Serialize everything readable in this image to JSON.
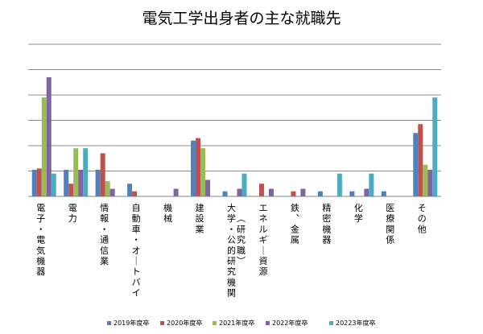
{
  "chart_data": {
    "type": "bar",
    "title": "電気工学出身者の主な就職先",
    "xlabel": "",
    "ylabel": "",
    "ylim": [
      0,
      6
    ],
    "grid": true,
    "legend_position": "bottom",
    "categories": [
      "電子・電気機器",
      "電力",
      "情報・通信業",
      "自動車・オートバイ",
      "機械",
      "建設業",
      "大学・公的研究機関（研究職）",
      "エネルギー資源",
      "鉄、金属",
      "精密機器",
      "化学",
      "医療関係",
      "その他"
    ],
    "series": [
      {
        "name": "2019年度卒",
        "color": "#4f81bd",
        "values": [
          1.05,
          1.05,
          1.05,
          0.5,
          0,
          2.2,
          0.2,
          0,
          0,
          0.2,
          0.2,
          0.2,
          2.5
        ]
      },
      {
        "name": "2020年度卒",
        "color": "#c0504d",
        "values": [
          1.1,
          0.5,
          1.7,
          0.2,
          0,
          2.3,
          0,
          0.5,
          0.2,
          0,
          0,
          0,
          2.85
        ]
      },
      {
        "name": "2021年度卒",
        "color": "#9bbb59",
        "values": [
          3.9,
          1.9,
          0.6,
          0,
          0,
          1.9,
          0,
          0,
          0,
          0,
          0,
          0,
          1.25
        ]
      },
      {
        "name": "2022年度卒",
        "color": "#8064a2",
        "values": [
          4.7,
          1.05,
          0.3,
          0,
          0.3,
          0.65,
          0.3,
          0.3,
          0.3,
          0,
          0.3,
          0,
          1.05
        ]
      },
      {
        "name": "20223年度卒",
        "color": "#4bacc6",
        "values": [
          0.9,
          1.9,
          0,
          0,
          0,
          0,
          0.9,
          0,
          0,
          0.9,
          0.9,
          0,
          3.9
        ]
      }
    ]
  }
}
